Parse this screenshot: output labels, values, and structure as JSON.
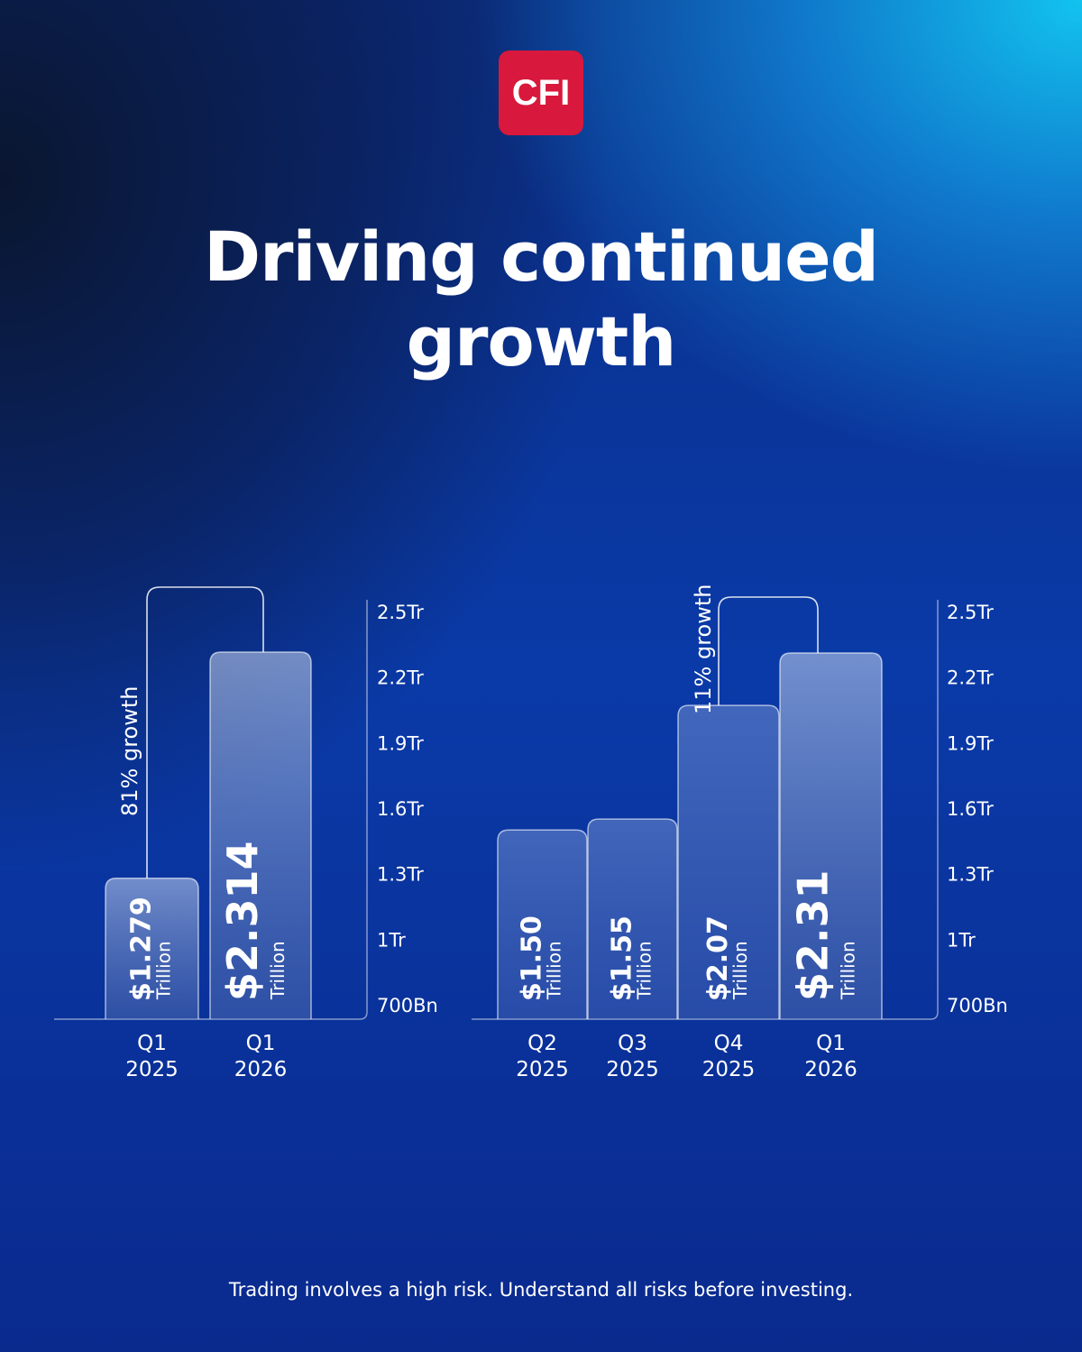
{
  "logo_text": "CFI",
  "title_line1": "Driving continued",
  "title_line2": "growth",
  "disclaimer": "Trading involves a high risk. Understand all risks before investing.",
  "colors": {
    "logo": "#d8183c",
    "background_dark": "#0a1630",
    "background_light": "#12c3ef"
  },
  "chart_data": [
    {
      "type": "bar",
      "categories": [
        [
          "Q1",
          "2025"
        ],
        [
          "Q1",
          "2026"
        ]
      ],
      "values": [
        1.279,
        2.314
      ],
      "value_labels": [
        "$1.279",
        "$2.314"
      ],
      "unit_label": "Trillion",
      "annotation": "81% growth",
      "yticks": [
        "2.5Tr",
        "2.2Tr",
        "1.9Tr",
        "1.6Tr",
        "1.3Tr",
        "1Tr",
        "700Bn"
      ],
      "ylim": [
        0.7,
        2.5
      ]
    },
    {
      "type": "bar",
      "categories": [
        [
          "Q2",
          "2025"
        ],
        [
          "Q3",
          "2025"
        ],
        [
          "Q4",
          "2025"
        ],
        [
          "Q1",
          "2026"
        ]
      ],
      "values": [
        1.5,
        1.55,
        2.07,
        2.31
      ],
      "value_labels": [
        "$1.50",
        "$1.55",
        "$2.07",
        "$2.31"
      ],
      "unit_label": "Trillion",
      "annotation": "11% growth",
      "yticks": [
        "2.5Tr",
        "2.2Tr",
        "1.9Tr",
        "1.6Tr",
        "1.3Tr",
        "1Tr",
        "700Bn"
      ],
      "ylim": [
        0.7,
        2.5
      ]
    }
  ]
}
